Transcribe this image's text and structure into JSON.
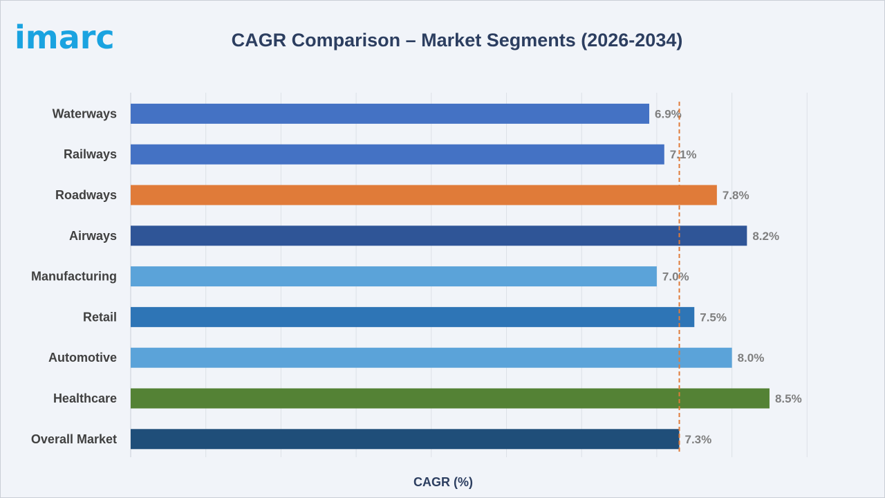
{
  "logo": {
    "text": "imarc"
  },
  "chart_data": {
    "type": "bar",
    "orientation": "horizontal",
    "title": "CAGR Comparison – Market Segments (2026-2034)",
    "xlabel": "CAGR (%)",
    "ylabel": "",
    "xlim": [
      0,
      9
    ],
    "grid": true,
    "categories": [
      "Waterways",
      "Railways",
      "Roadways",
      "Airways",
      "Manufacturing",
      "Retail",
      "Automotive",
      "Healthcare",
      "Overall Market"
    ],
    "values": [
      6.9,
      7.1,
      7.8,
      8.2,
      7.0,
      7.5,
      8.0,
      8.5,
      7.3
    ],
    "data_labels": [
      "6.9%",
      "7.1%",
      "7.8%",
      "8.2%",
      "7.0%",
      "7.5%",
      "8.0%",
      "8.5%",
      "7.3%"
    ],
    "bar_colors": [
      "#4472c4",
      "#4472c4",
      "#e07b39",
      "#2f5597",
      "#5ba3d9",
      "#2e75b6",
      "#5ba3d9",
      "#548235",
      "#1f4e79"
    ],
    "reference_line": {
      "value": 7.3,
      "style": "dashed",
      "color": "#e07b39"
    }
  }
}
